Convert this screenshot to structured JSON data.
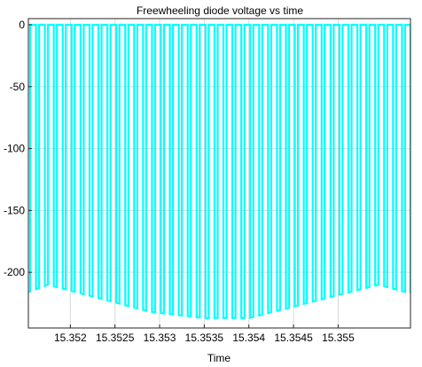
{
  "chart_data": {
    "type": "line",
    "title": "Freewheeling diode voltage vs time",
    "xlabel": "Time",
    "ylabel": "",
    "xlim": [
      15.35153,
      15.35581
    ],
    "ylim": [
      -245,
      5
    ],
    "xticks": [
      15.352,
      15.3525,
      15.353,
      15.3535,
      15.354,
      15.3545,
      15.355
    ],
    "xtick_labels": [
      "15.352",
      "15.3525",
      "15.353",
      "15.3535",
      "15.354",
      "15.3545",
      "15.355"
    ],
    "yticks": [
      0,
      -50,
      -100,
      -150,
      -200
    ],
    "ytick_labels": [
      "0",
      "-50",
      "-100",
      "-150",
      "-200"
    ],
    "grid": true,
    "series": [
      {
        "color": "#00ffff",
        "description_of_shape": "pulse train switching between 0 and a negative envelope",
        "pulse_period": 0.0001,
        "low_duty": 0.35,
        "first_pulse_start": 15.35155,
        "high_level": 0,
        "envelope": {
          "x": [
            15.35153,
            15.35175,
            15.3529,
            15.3535,
            15.354,
            15.35545,
            15.35581
          ],
          "y": [
            -216,
            -210,
            -232,
            -237,
            -237,
            -210,
            -217
          ]
        }
      }
    ]
  }
}
